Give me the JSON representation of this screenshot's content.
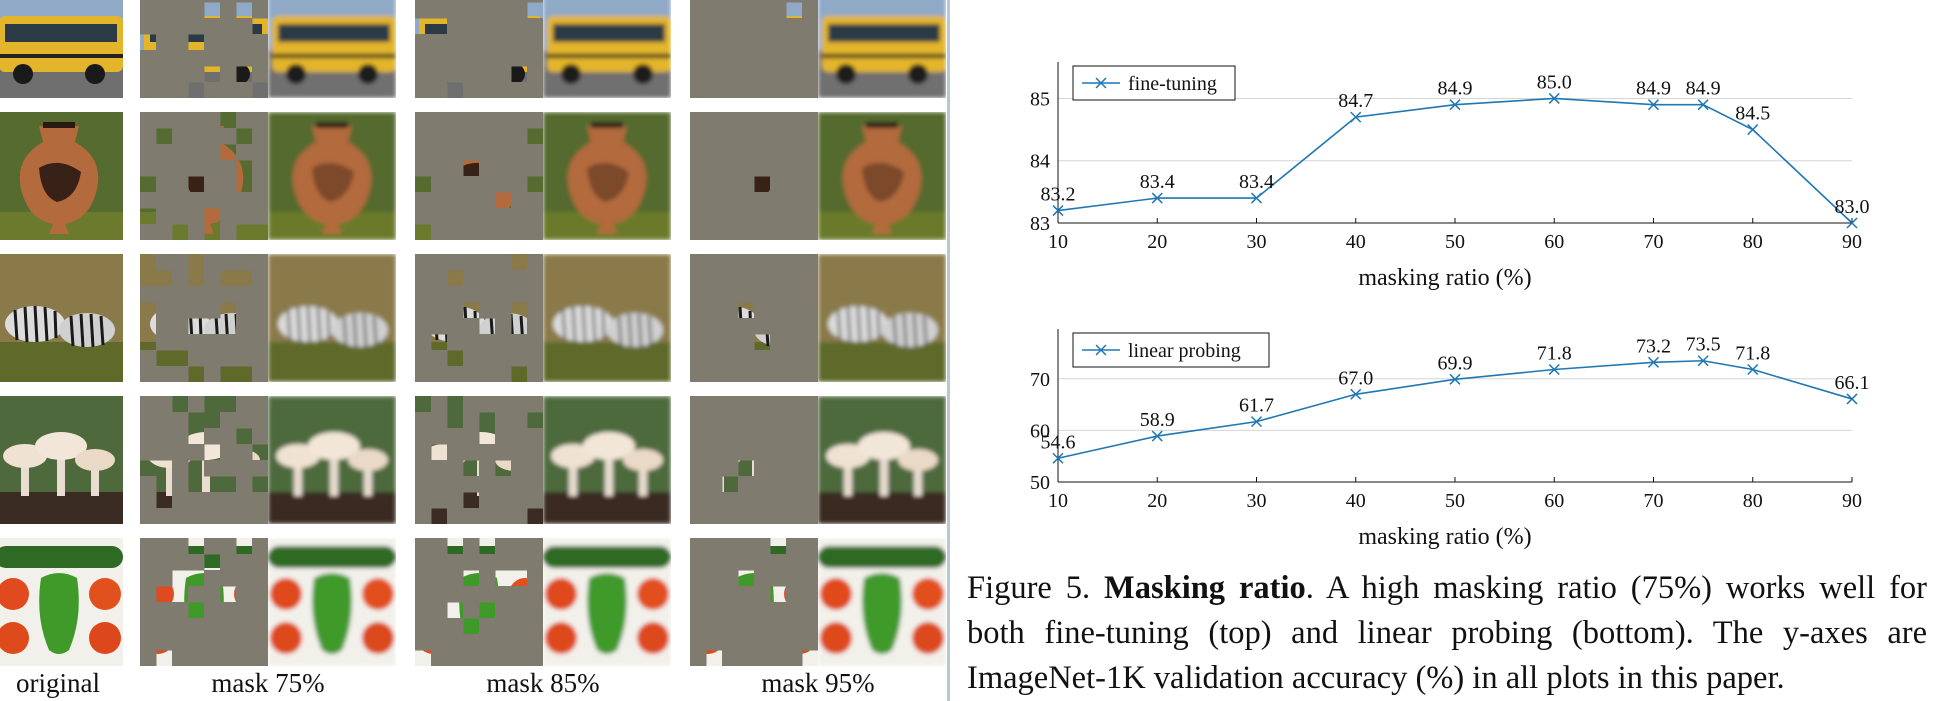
{
  "columns": {
    "original": "original",
    "mask75": "mask 75%",
    "mask85": "mask 85%",
    "mask95": "mask 95%"
  },
  "rows": [
    "school-bus",
    "amphora-vase",
    "zebras",
    "mushrooms",
    "vegetables"
  ],
  "colors": {
    "line": "#1f77b4",
    "mask_gray": "#7f7b6f",
    "grid": "#d6d6d6"
  },
  "chart_data": [
    {
      "type": "line",
      "x": [
        10,
        20,
        30,
        40,
        50,
        60,
        70,
        75,
        80,
        90
      ],
      "series": [
        {
          "name": "fine-tuning",
          "values": [
            83.2,
            83.4,
            83.4,
            84.7,
            84.9,
            85.0,
            84.9,
            84.9,
            84.5,
            83.0
          ]
        }
      ],
      "point_labels": [
        "83.2",
        "83.4",
        "83.4",
        "84.7",
        "84.9",
        "85.0",
        "84.9",
        "84.9",
        "84.5",
        "83.0"
      ],
      "xlabel": "masking ratio (%)",
      "ylabel": "",
      "xlim": [
        10,
        90
      ],
      "ylim": [
        83,
        85.2
      ],
      "xticks": [
        10,
        20,
        30,
        40,
        50,
        60,
        70,
        80,
        90
      ],
      "yticks": [
        83,
        84,
        85
      ],
      "grid": true,
      "legend": "top-left"
    },
    {
      "type": "line",
      "x": [
        10,
        20,
        30,
        40,
        50,
        60,
        70,
        75,
        80,
        90
      ],
      "series": [
        {
          "name": "linear probing",
          "values": [
            54.6,
            58.9,
            61.7,
            67.0,
            69.9,
            71.8,
            73.2,
            73.5,
            71.8,
            66.1
          ]
        }
      ],
      "point_labels": [
        "54.6",
        "58.9",
        "61.7",
        "67.0",
        "69.9",
        "71.8",
        "73.2",
        "73.5",
        "71.8",
        "66.1"
      ],
      "xlabel": "masking ratio (%)",
      "ylabel": "",
      "xlim": [
        10,
        90
      ],
      "ylim": [
        50,
        75
      ],
      "xticks": [
        10,
        20,
        30,
        40,
        50,
        60,
        70,
        80,
        90
      ],
      "yticks": [
        50,
        60,
        70
      ],
      "grid": true,
      "legend": "top-left"
    }
  ],
  "caption": {
    "prefix": "Figure 5. ",
    "title": "Masking ratio",
    "body": ". A high masking ratio (75%) works well for both fine-tuning (top) and linear probing (bottom). The y-axes are ImageNet-1K validation accuracy (%) in all plots in this paper."
  }
}
